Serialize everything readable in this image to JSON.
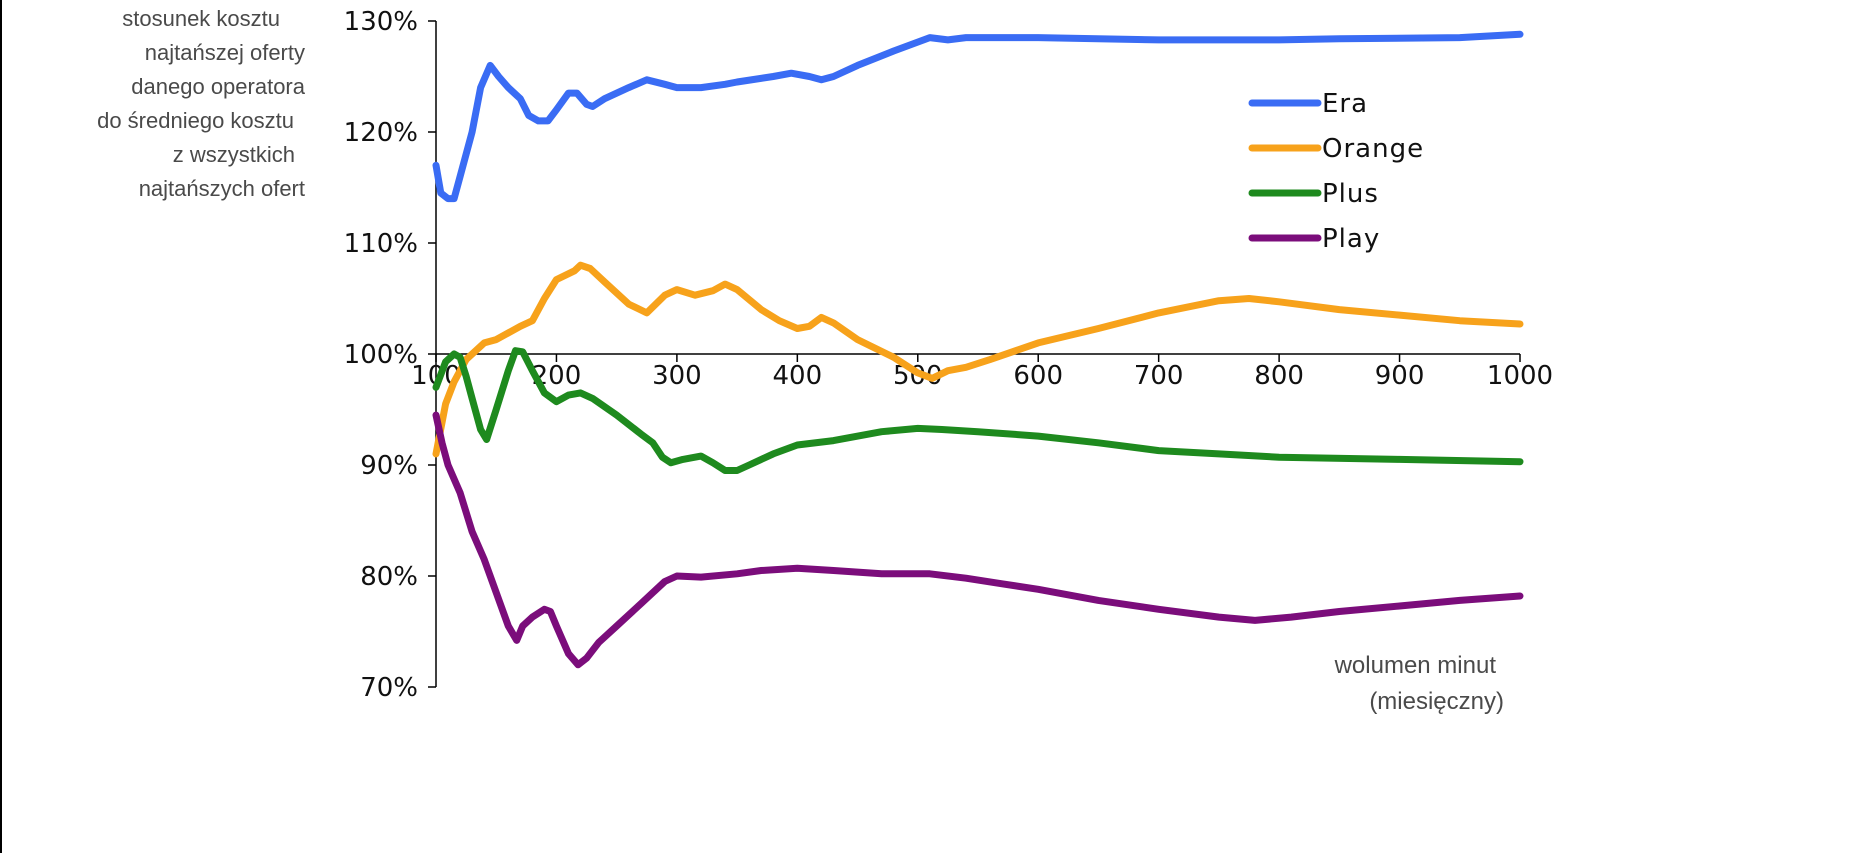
{
  "chart_data": {
    "type": "line",
    "ylabel_lines": [
      "stosunek kosztu",
      "najtańszej  oferty",
      "danego operatora",
      "do średniego kosztu",
      "z wszystkich",
      "najtańszych ofert"
    ],
    "xlabel_lines": [
      "wolumen minut",
      "(miesięczny)"
    ],
    "x_ticks": [
      "100",
      "200",
      "300",
      "400",
      "500",
      "600",
      "700",
      "800",
      "900",
      "1000"
    ],
    "y_ticks": [
      "70%",
      "80%",
      "90%",
      "100%",
      "110%",
      "120%",
      "130%"
    ],
    "xlim": [
      100,
      1000
    ],
    "ylim": [
      70,
      130
    ],
    "x_axis_crosses_at_y": 100,
    "legend_position": "top-right",
    "series": [
      {
        "name": "Era",
        "color": "#3a6cf4",
        "points": [
          [
            100,
            117
          ],
          [
            104,
            114.5
          ],
          [
            110,
            114
          ],
          [
            115,
            114
          ],
          [
            120,
            116
          ],
          [
            130,
            120
          ],
          [
            137,
            124
          ],
          [
            145,
            126
          ],
          [
            152,
            125
          ],
          [
            160,
            124
          ],
          [
            170,
            123
          ],
          [
            177,
            121.5
          ],
          [
            185,
            121
          ],
          [
            193,
            121
          ],
          [
            200,
            122
          ],
          [
            210,
            123.5
          ],
          [
            217,
            123.5
          ],
          [
            225,
            122.5
          ],
          [
            230,
            122.3
          ],
          [
            240,
            123
          ],
          [
            260,
            124
          ],
          [
            275,
            124.7
          ],
          [
            290,
            124.3
          ],
          [
            300,
            124
          ],
          [
            310,
            124
          ],
          [
            320,
            124
          ],
          [
            340,
            124.3
          ],
          [
            350,
            124.5
          ],
          [
            380,
            125
          ],
          [
            395,
            125.3
          ],
          [
            410,
            125
          ],
          [
            420,
            124.7
          ],
          [
            430,
            125
          ],
          [
            450,
            126
          ],
          [
            480,
            127.3
          ],
          [
            510,
            128.5
          ],
          [
            525,
            128.3
          ],
          [
            540,
            128.5
          ],
          [
            600,
            128.5
          ],
          [
            700,
            128.3
          ],
          [
            800,
            128.3
          ],
          [
            850,
            128.4
          ],
          [
            950,
            128.5
          ],
          [
            1000,
            128.8
          ]
        ]
      },
      {
        "name": "Orange",
        "color": "#f7a21b",
        "points": [
          [
            100,
            91
          ],
          [
            108,
            95.5
          ],
          [
            115,
            97.5
          ],
          [
            125,
            99.5
          ],
          [
            140,
            101
          ],
          [
            150,
            101.3
          ],
          [
            170,
            102.5
          ],
          [
            180,
            103
          ],
          [
            190,
            105
          ],
          [
            200,
            106.7
          ],
          [
            215,
            107.5
          ],
          [
            220,
            108
          ],
          [
            228,
            107.7
          ],
          [
            240,
            106.5
          ],
          [
            260,
            104.5
          ],
          [
            275,
            103.7
          ],
          [
            290,
            105.3
          ],
          [
            300,
            105.8
          ],
          [
            315,
            105.3
          ],
          [
            330,
            105.7
          ],
          [
            340,
            106.3
          ],
          [
            350,
            105.8
          ],
          [
            370,
            104
          ],
          [
            385,
            103
          ],
          [
            400,
            102.3
          ],
          [
            410,
            102.5
          ],
          [
            420,
            103.3
          ],
          [
            430,
            102.8
          ],
          [
            450,
            101.3
          ],
          [
            480,
            99.7
          ],
          [
            500,
            98.3
          ],
          [
            512,
            97.8
          ],
          [
            525,
            98.5
          ],
          [
            540,
            98.8
          ],
          [
            560,
            99.5
          ],
          [
            600,
            101
          ],
          [
            650,
            102.3
          ],
          [
            700,
            103.7
          ],
          [
            750,
            104.8
          ],
          [
            775,
            105
          ],
          [
            800,
            104.7
          ],
          [
            850,
            104
          ],
          [
            900,
            103.5
          ],
          [
            950,
            103
          ],
          [
            1000,
            102.7
          ]
        ]
      },
      {
        "name": "Plus",
        "color": "#1e8a1e",
        "points": [
          [
            100,
            97
          ],
          [
            108,
            99.3
          ],
          [
            115,
            100
          ],
          [
            120,
            99.7
          ],
          [
            125,
            98
          ],
          [
            130,
            96
          ],
          [
            137,
            93.2
          ],
          [
            142,
            92.3
          ],
          [
            150,
            95
          ],
          [
            160,
            98.5
          ],
          [
            166,
            100.3
          ],
          [
            172,
            100.2
          ],
          [
            180,
            98.5
          ],
          [
            190,
            96.5
          ],
          [
            200,
            95.7
          ],
          [
            210,
            96.3
          ],
          [
            220,
            96.5
          ],
          [
            230,
            96
          ],
          [
            250,
            94.5
          ],
          [
            270,
            92.8
          ],
          [
            280,
            92
          ],
          [
            288,
            90.7
          ],
          [
            295,
            90.2
          ],
          [
            305,
            90.5
          ],
          [
            320,
            90.8
          ],
          [
            330,
            90.2
          ],
          [
            340,
            89.5
          ],
          [
            350,
            89.5
          ],
          [
            360,
            90
          ],
          [
            380,
            91
          ],
          [
            400,
            91.8
          ],
          [
            430,
            92.2
          ],
          [
            470,
            93
          ],
          [
            500,
            93.3
          ],
          [
            520,
            93.2
          ],
          [
            550,
            93
          ],
          [
            600,
            92.6
          ],
          [
            650,
            92
          ],
          [
            700,
            91.3
          ],
          [
            750,
            91
          ],
          [
            800,
            90.7
          ],
          [
            900,
            90.5
          ],
          [
            1000,
            90.3
          ]
        ]
      },
      {
        "name": "Play",
        "color": "#7b0d7b",
        "points": [
          [
            100,
            94.5
          ],
          [
            105,
            92
          ],
          [
            110,
            90
          ],
          [
            120,
            87.5
          ],
          [
            130,
            84
          ],
          [
            140,
            81.5
          ],
          [
            150,
            78.5
          ],
          [
            160,
            75.5
          ],
          [
            167,
            74.2
          ],
          [
            172,
            75.5
          ],
          [
            180,
            76.3
          ],
          [
            190,
            77
          ],
          [
            195,
            76.8
          ],
          [
            200,
            75.5
          ],
          [
            210,
            73
          ],
          [
            218,
            72
          ],
          [
            225,
            72.6
          ],
          [
            235,
            74
          ],
          [
            250,
            75.5
          ],
          [
            270,
            77.5
          ],
          [
            290,
            79.5
          ],
          [
            300,
            80
          ],
          [
            320,
            79.9
          ],
          [
            350,
            80.2
          ],
          [
            370,
            80.5
          ],
          [
            400,
            80.7
          ],
          [
            430,
            80.5
          ],
          [
            470,
            80.2
          ],
          [
            510,
            80.2
          ],
          [
            540,
            79.8
          ],
          [
            570,
            79.3
          ],
          [
            600,
            78.8
          ],
          [
            650,
            77.8
          ],
          [
            700,
            77
          ],
          [
            750,
            76.3
          ],
          [
            780,
            76
          ],
          [
            810,
            76.3
          ],
          [
            850,
            76.8
          ],
          [
            900,
            77.3
          ],
          [
            950,
            77.8
          ],
          [
            1000,
            78.2
          ]
        ]
      }
    ]
  }
}
